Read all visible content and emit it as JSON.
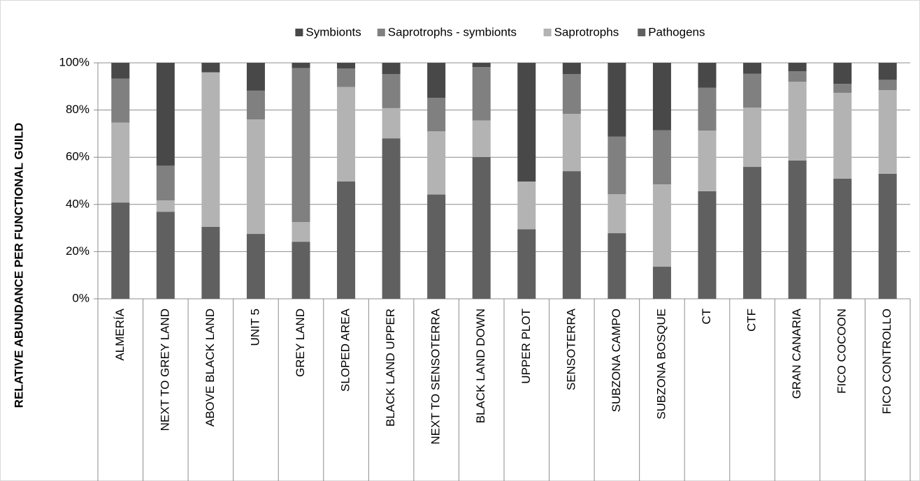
{
  "chart_data": {
    "type": "stacked_bar",
    "y_axis_label": "RELATIVE ABUNDANCE PER FUNCTIONAL GUILD",
    "categories": [
      "ALMERÍA",
      "NEXT TO GREY LAND",
      "ABOVE BLACK LAND",
      "UNIT 5",
      "GREY LAND",
      "SLOPED AREA",
      "BLACK LAND UPPER",
      "NEXT TO SENSOTERRA",
      "BLACK LAND DOWN",
      "UPPER PLOT",
      "SENSOTERRA",
      "SUBZONA CAMPO",
      "SUBZONA BOSQUE",
      "CT",
      "CTF",
      "GRAN CANARIA",
      "FICO COCOON",
      "FICO CONTROLLO"
    ],
    "series": [
      {
        "name": "Symbionts",
        "color": "#484848",
        "values": [
          6.7,
          43.6,
          4.0,
          11.8,
          2.2,
          2.4,
          4.8,
          14.8,
          1.8,
          50.3,
          4.8,
          31.3,
          28.6,
          10.5,
          4.6,
          3.6,
          8.9,
          7.2
        ]
      },
      {
        "name": "Saprotrophs - symbionts",
        "color": "#808080",
        "values": [
          18.6,
          14.7,
          0,
          12.2,
          65.3,
          7.8,
          14.4,
          14.2,
          22.6,
          0,
          16.8,
          24.4,
          22.9,
          18.2,
          14.4,
          4.4,
          3.8,
          4.4
        ]
      },
      {
        "name": "Saprotrophs",
        "color": "#b3b3b3",
        "values": [
          33.9,
          4.8,
          65.5,
          48.5,
          8.3,
          40.1,
          12.8,
          26.8,
          15.5,
          20.2,
          24.3,
          16.5,
          34.9,
          25.7,
          25.1,
          33.4,
          36.4,
          35.4
        ]
      },
      {
        "name": "Pathogens",
        "color": "#606060",
        "values": [
          40.8,
          36.9,
          30.5,
          27.5,
          24.2,
          49.7,
          68.0,
          44.2,
          60.1,
          29.5,
          54.1,
          27.8,
          13.6,
          45.6,
          55.9,
          58.6,
          50.9,
          53.0
        ]
      }
    ],
    "stack_order": "bottom_up_from_last",
    "ylim": [
      0,
      100
    ],
    "yticks": [
      {
        "value": 0,
        "label": "0%"
      },
      {
        "value": 20,
        "label": "20%"
      },
      {
        "value": 40,
        "label": "40%"
      },
      {
        "value": 60,
        "label": "60%"
      },
      {
        "value": 80,
        "label": "80%"
      },
      {
        "value": 100,
        "label": "100%"
      }
    ],
    "grid": true,
    "legend": "top"
  }
}
